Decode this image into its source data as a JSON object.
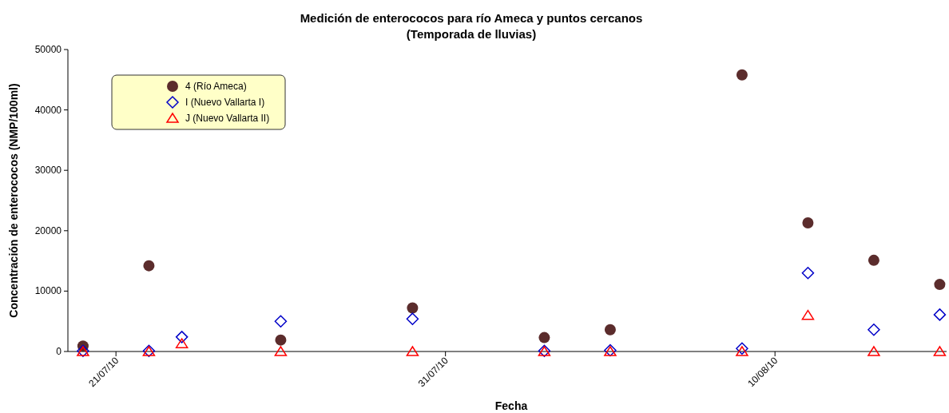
{
  "chart_data": {
    "type": "scatter",
    "title": "Medición de enterococos para río Ameca y puntos cercanos",
    "subtitle": "(Temporada de lluvias)",
    "xlabel": "Fecha",
    "ylabel": "Concentración de enterococos (NMP/100ml)",
    "xlim": [
      "2010-07-19T13:00",
      "2010-08-15T05:00"
    ],
    "xticks": [
      {
        "value": "2010-07-21",
        "label": "21/07/10"
      },
      {
        "value": "2010-07-31",
        "label": "31/07/10"
      },
      {
        "value": "2010-08-10",
        "label": "10/08/10"
      }
    ],
    "ylim": [
      0,
      50000
    ],
    "yticks": [
      0,
      10000,
      20000,
      30000,
      40000,
      50000
    ],
    "grid": false,
    "legend": "top left",
    "series": [
      {
        "name": "4 (Río Ameca)",
        "color": "#5b2c2c",
        "marker": "circle",
        "x": [
          "2010-07-20",
          "2010-07-22",
          "2010-07-26",
          "2010-07-30",
          "2010-08-03",
          "2010-08-05",
          "2010-08-09",
          "2010-08-11",
          "2010-08-13",
          "2010-08-15"
        ],
        "values": [
          900,
          14200,
          1900,
          7200,
          2300,
          3600,
          45800,
          21300,
          15100,
          11100
        ]
      },
      {
        "name": "I (Nuevo Vallarta I)",
        "color": "#0000c8",
        "marker": "diamond",
        "x": [
          "2010-07-20",
          "2010-07-22",
          "2010-07-23",
          "2010-07-26",
          "2010-07-30",
          "2010-08-03",
          "2010-08-05",
          "2010-08-09",
          "2010-08-11",
          "2010-08-13",
          "2010-08-15"
        ],
        "values": [
          100,
          100,
          2400,
          5000,
          5400,
          100,
          200,
          500,
          13000,
          3600,
          6100
        ]
      },
      {
        "name": "J (Nuevo Vallarta II)",
        "color": "#ff0000",
        "marker": "triangle",
        "x": [
          "2010-07-20",
          "2010-07-22",
          "2010-07-23",
          "2010-07-26",
          "2010-07-30",
          "2010-08-03",
          "2010-08-05",
          "2010-08-09",
          "2010-08-11",
          "2010-08-13",
          "2010-08-15"
        ],
        "values": [
          0,
          0,
          1300,
          0,
          0,
          0,
          0,
          0,
          6000,
          0,
          0
        ]
      }
    ]
  }
}
